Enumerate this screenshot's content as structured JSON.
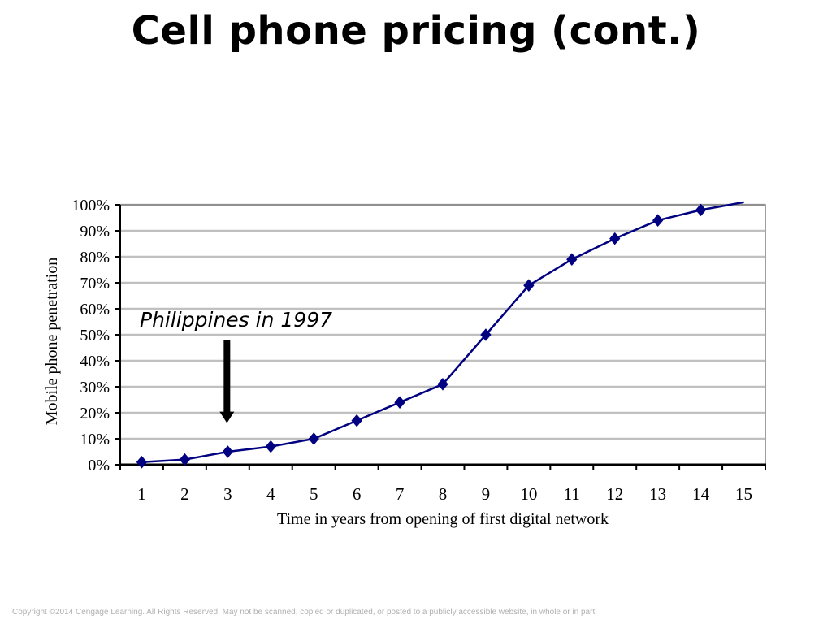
{
  "slide": {
    "title": "Cell phone pricing (cont.)",
    "copyright": "Copyright ©2014 Cengage Learning. All Rights Reserved. May not be scanned, copied or duplicated, or posted to a publicly accessible website, in whole or in part."
  },
  "chart_data": {
    "type": "line",
    "x": [
      1,
      2,
      3,
      4,
      5,
      6,
      7,
      8,
      9,
      10,
      11,
      12,
      13,
      14,
      15
    ],
    "series": [
      {
        "values": [
          1,
          2,
          5,
          7,
          10,
          17,
          24,
          31,
          50,
          69,
          79,
          87,
          94,
          98,
          101
        ],
        "color": "#000080",
        "marker": "diamond",
        "marker_on_last": false
      }
    ],
    "xlabel": "Time in years from opening of first digital network",
    "ylabel": "Mobile phone penetration",
    "ylim": [
      0,
      100
    ],
    "ytick_values": [
      0,
      10,
      20,
      30,
      40,
      50,
      60,
      70,
      80,
      90,
      100
    ],
    "ytick_labels": [
      "0%",
      "10%",
      "20%",
      "30%",
      "40%",
      "50%",
      "60%",
      "70%",
      "80%",
      "90%",
      "100%"
    ],
    "xtick_labels": [
      "1",
      "2",
      "3",
      "4",
      "5",
      "6",
      "7",
      "8",
      "9",
      "10",
      "11",
      "12",
      "13",
      "14",
      "15"
    ],
    "grid": true,
    "grid_color": "#c0c0c0",
    "annotation": {
      "text": "Philippines in 1997",
      "arrow_x": 3,
      "arrow_target_y": 17,
      "arrow_color": "#000000"
    }
  }
}
